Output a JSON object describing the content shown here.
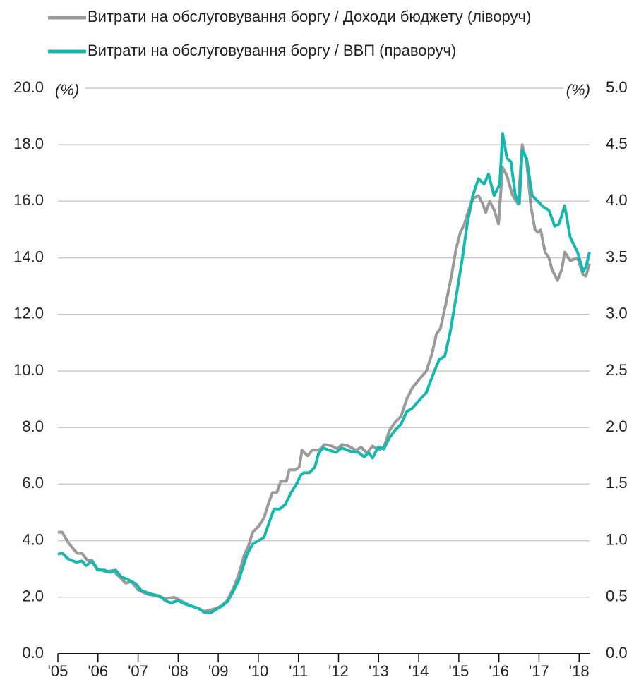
{
  "chart_data": {
    "type": "line",
    "ylabel": "(%)",
    "y2label": "(%)",
    "xlim": [
      2005,
      2018.26
    ],
    "xticks": [
      {
        "value": 2005,
        "label": "'05"
      },
      {
        "value": 2006,
        "label": "'06"
      },
      {
        "value": 2007,
        "label": "'07"
      },
      {
        "value": 2008,
        "label": "'08"
      },
      {
        "value": 2009,
        "label": "'09"
      },
      {
        "value": 2010,
        "label": "'10"
      },
      {
        "value": 2011,
        "label": "'11"
      },
      {
        "value": 2012,
        "label": "'12"
      },
      {
        "value": 2013,
        "label": "'13"
      },
      {
        "value": 2014,
        "label": "'14"
      },
      {
        "value": 2015,
        "label": "'15"
      },
      {
        "value": 2016,
        "label": "'16"
      },
      {
        "value": 2017,
        "label": "'17"
      },
      {
        "value": 2018,
        "label": "'18"
      }
    ],
    "ylim": [
      0,
      20
    ],
    "yticks": [
      {
        "value": 0,
        "label": "0.0"
      },
      {
        "value": 2,
        "label": "2.0"
      },
      {
        "value": 4,
        "label": "4.0"
      },
      {
        "value": 6,
        "label": "6.0"
      },
      {
        "value": 8,
        "label": "8.0"
      },
      {
        "value": 10,
        "label": "10.0"
      },
      {
        "value": 12,
        "label": "12.0"
      },
      {
        "value": 14,
        "label": "14.0"
      },
      {
        "value": 16,
        "label": "16.0"
      },
      {
        "value": 18,
        "label": "18.0"
      },
      {
        "value": 20,
        "label": "20.0"
      }
    ],
    "y2lim": [
      0,
      5
    ],
    "y2ticks": [
      {
        "value": 0,
        "label": "0.0"
      },
      {
        "value": 0.5,
        "label": "0.5"
      },
      {
        "value": 1,
        "label": "1.0"
      },
      {
        "value": 1.5,
        "label": "1.5"
      },
      {
        "value": 2,
        "label": "2.0"
      },
      {
        "value": 2.5,
        "label": "2.5"
      },
      {
        "value": 3,
        "label": "3.0"
      },
      {
        "value": 3.5,
        "label": "3.5"
      },
      {
        "value": 4,
        "label": "4.0"
      },
      {
        "value": 4.5,
        "label": "4.5"
      },
      {
        "value": 5,
        "label": "5.0"
      }
    ],
    "grid": true,
    "legend": "top-left",
    "series": [
      {
        "name": "Витрати на обслуговування боргу / Доходи бюджету (ліворуч)",
        "color": "#9a9a9a",
        "axis": "y",
        "x": [
          2005.0,
          2005.11,
          2005.25,
          2005.39,
          2005.49,
          2005.6,
          2005.74,
          2005.85,
          2005.99,
          2006.2,
          2006.37,
          2006.55,
          2006.69,
          2006.83,
          2007.01,
          2007.25,
          2007.46,
          2007.68,
          2007.89,
          2008.1,
          2008.31,
          2008.49,
          2008.66,
          2008.8,
          2008.94,
          2009.08,
          2009.23,
          2009.37,
          2009.51,
          2009.65,
          2009.75,
          2009.86,
          2010.0,
          2010.14,
          2010.25,
          2010.35,
          2010.46,
          2010.56,
          2010.7,
          2010.77,
          2010.92,
          2011.02,
          2011.09,
          2011.23,
          2011.34,
          2011.51,
          2011.65,
          2011.83,
          2011.97,
          2012.08,
          2012.25,
          2012.43,
          2012.57,
          2012.71,
          2012.85,
          2012.99,
          2013.13,
          2013.27,
          2013.42,
          2013.56,
          2013.7,
          2013.84,
          2014.01,
          2014.19,
          2014.33,
          2014.44,
          2014.54,
          2014.68,
          2014.82,
          2014.93,
          2015.04,
          2015.14,
          2015.25,
          2015.35,
          2015.49,
          2015.6,
          2015.67,
          2015.77,
          2015.88,
          2015.99,
          2016.09,
          2016.2,
          2016.34,
          2016.48,
          2016.58,
          2016.69,
          2016.8,
          2016.9,
          2016.97,
          2017.04,
          2017.15,
          2017.25,
          2017.32,
          2017.46,
          2017.57,
          2017.64,
          2017.78,
          2017.96,
          2018.1,
          2018.17,
          2018.26
        ],
        "values": [
          4.3,
          4.3,
          3.95,
          3.7,
          3.55,
          3.55,
          3.3,
          3.3,
          3.0,
          2.9,
          2.95,
          2.7,
          2.5,
          2.55,
          2.25,
          2.1,
          2.05,
          1.95,
          2.0,
          1.85,
          1.7,
          1.6,
          1.5,
          1.55,
          1.6,
          1.7,
          1.9,
          2.3,
          2.8,
          3.5,
          3.8,
          4.3,
          4.5,
          4.8,
          5.3,
          5.7,
          5.7,
          6.1,
          6.1,
          6.5,
          6.5,
          6.6,
          7.2,
          7.0,
          7.2,
          7.2,
          7.4,
          7.35,
          7.25,
          7.4,
          7.35,
          7.2,
          7.3,
          7.1,
          7.35,
          7.2,
          7.3,
          7.9,
          8.2,
          8.4,
          9.0,
          9.4,
          9.7,
          10.0,
          10.6,
          11.3,
          11.5,
          12.4,
          13.4,
          14.3,
          14.9,
          15.2,
          15.7,
          16.1,
          16.2,
          15.9,
          15.6,
          16.0,
          15.7,
          15.2,
          17.2,
          16.9,
          16.2,
          15.9,
          18.0,
          17.4,
          15.8,
          15.0,
          14.9,
          15.0,
          14.2,
          14.0,
          13.6,
          13.2,
          13.6,
          14.2,
          13.9,
          14.0,
          13.4,
          13.35,
          13.8
        ]
      },
      {
        "name": "Витрати на обслуговування боргу / ВВП (праворуч)",
        "color": "#14b8ae",
        "axis": "y2",
        "x": [
          2005.0,
          2005.11,
          2005.25,
          2005.46,
          2005.6,
          2005.7,
          2005.85,
          2005.99,
          2006.16,
          2006.3,
          2006.44,
          2006.58,
          2006.73,
          2006.83,
          2006.94,
          2007.08,
          2007.32,
          2007.54,
          2007.68,
          2007.82,
          2007.99,
          2008.17,
          2008.35,
          2008.52,
          2008.63,
          2008.8,
          2008.94,
          2009.08,
          2009.23,
          2009.37,
          2009.51,
          2009.61,
          2009.72,
          2009.86,
          2010.0,
          2010.14,
          2010.25,
          2010.39,
          2010.53,
          2010.67,
          2010.81,
          2010.95,
          2011.06,
          2011.13,
          2011.27,
          2011.41,
          2011.51,
          2011.62,
          2011.76,
          2011.94,
          2012.08,
          2012.29,
          2012.5,
          2012.64,
          2012.75,
          2012.85,
          2012.99,
          2013.13,
          2013.27,
          2013.42,
          2013.56,
          2013.7,
          2013.84,
          2014.01,
          2014.19,
          2014.37,
          2014.51,
          2014.65,
          2014.79,
          2014.93,
          2015.07,
          2015.21,
          2015.35,
          2015.49,
          2015.63,
          2015.74,
          2015.88,
          2016.02,
          2016.09,
          2016.2,
          2016.3,
          2016.41,
          2016.51,
          2016.58,
          2016.69,
          2016.83,
          2016.97,
          2017.11,
          2017.25,
          2017.39,
          2017.5,
          2017.64,
          2017.78,
          2017.96,
          2018.1,
          2018.17,
          2018.26
        ],
        "values": [
          0.88,
          0.89,
          0.84,
          0.81,
          0.82,
          0.78,
          0.82,
          0.74,
          0.74,
          0.72,
          0.74,
          0.68,
          0.66,
          0.64,
          0.62,
          0.56,
          0.53,
          0.51,
          0.47,
          0.45,
          0.47,
          0.44,
          0.42,
          0.4,
          0.37,
          0.36,
          0.39,
          0.42,
          0.46,
          0.55,
          0.65,
          0.76,
          0.88,
          0.97,
          1.0,
          1.03,
          1.14,
          1.28,
          1.28,
          1.32,
          1.42,
          1.5,
          1.58,
          1.6,
          1.6,
          1.65,
          1.78,
          1.82,
          1.8,
          1.78,
          1.82,
          1.79,
          1.78,
          1.74,
          1.78,
          1.73,
          1.83,
          1.81,
          1.91,
          1.98,
          2.03,
          2.14,
          2.17,
          2.24,
          2.31,
          2.48,
          2.6,
          2.63,
          2.85,
          3.15,
          3.45,
          3.8,
          4.05,
          4.2,
          4.15,
          4.24,
          4.05,
          4.15,
          4.6,
          4.38,
          4.35,
          4.05,
          3.98,
          4.45,
          4.38,
          4.05,
          4.0,
          3.95,
          3.92,
          3.78,
          3.8,
          3.96,
          3.68,
          3.55,
          3.38,
          3.42,
          3.55
        ]
      }
    ]
  }
}
